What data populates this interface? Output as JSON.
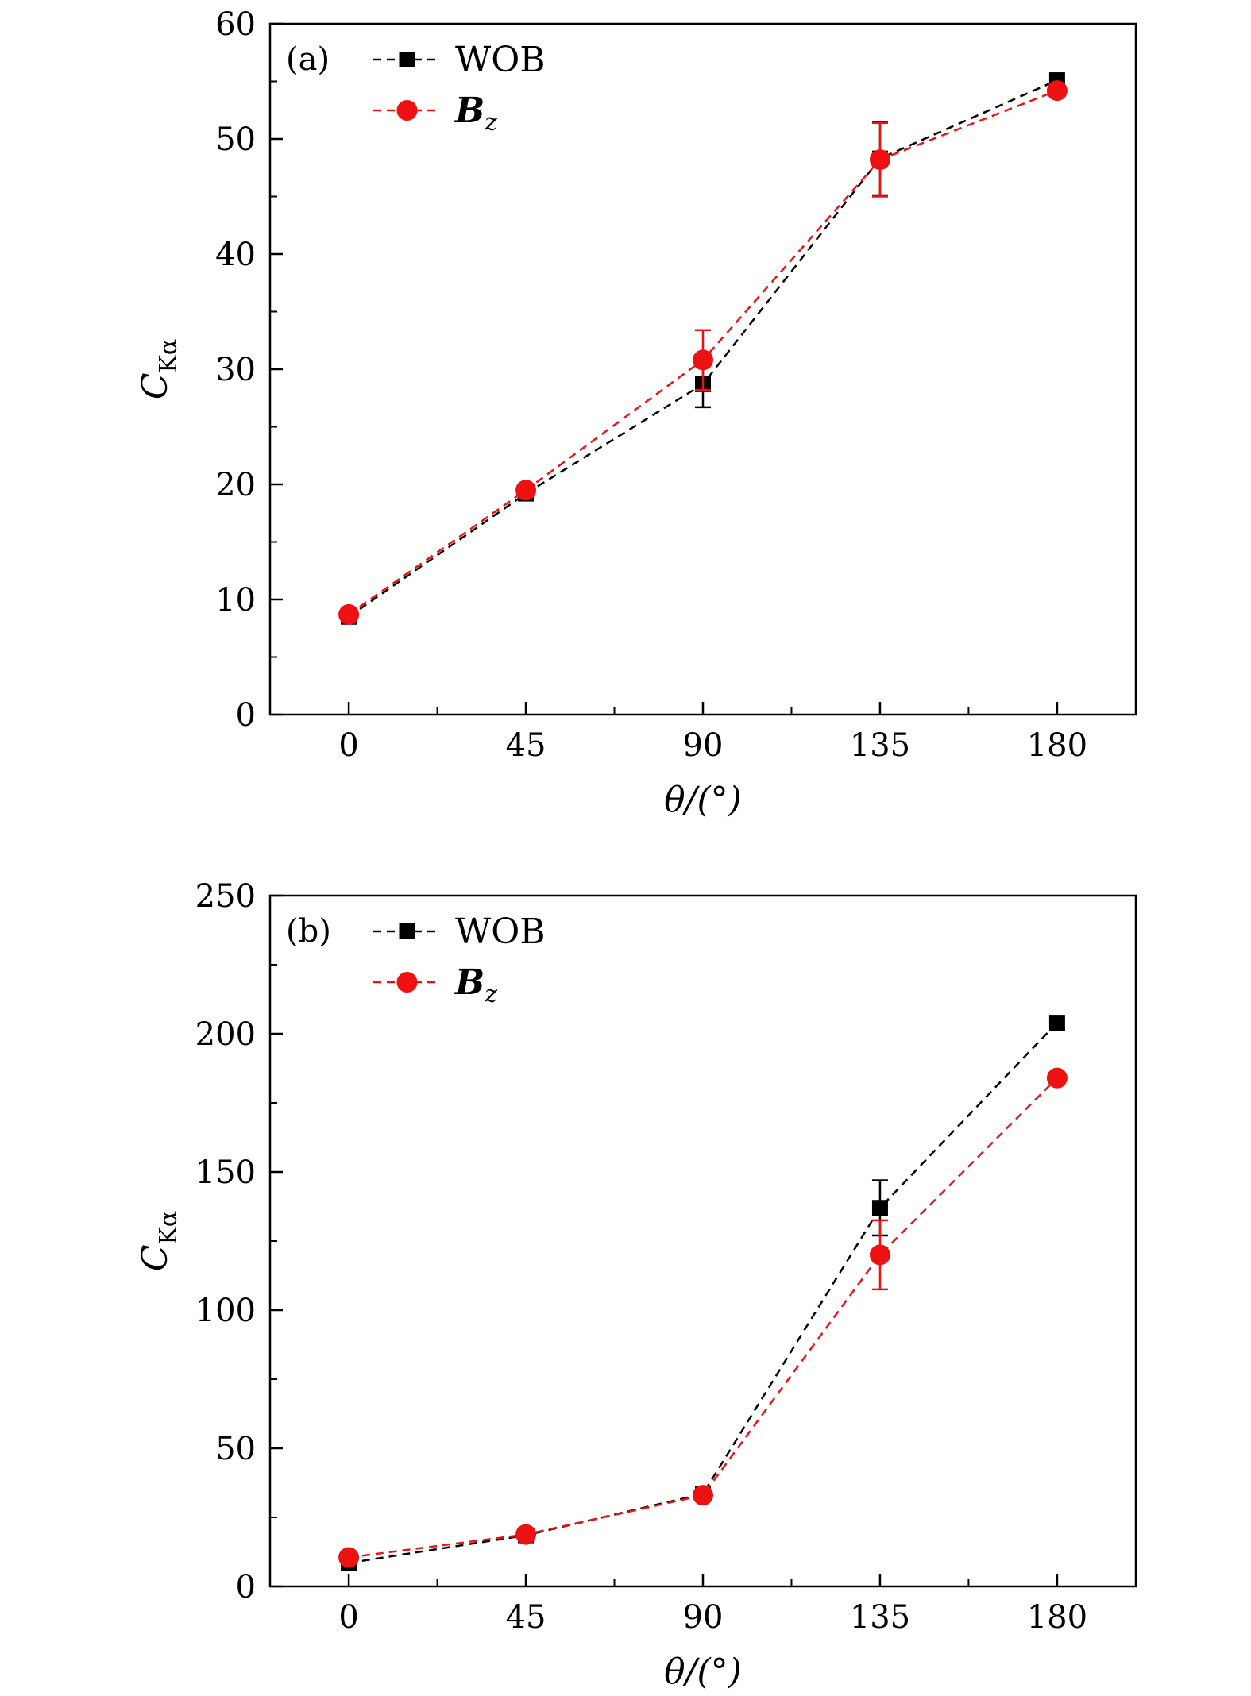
{
  "chart_data": [
    {
      "type": "line",
      "panel_label": "(a)",
      "xlabel": "θ/(°)",
      "ylabel": "C",
      "ylabel_subscript": "Kα",
      "x": [
        0,
        45,
        90,
        135,
        180
      ],
      "xlim": [
        -20,
        200
      ],
      "ylim": [
        0,
        60
      ],
      "x_ticks": [
        0,
        45,
        90,
        135,
        180
      ],
      "y_ticks": [
        0,
        10,
        20,
        30,
        40,
        50,
        60
      ],
      "legend_position": "top-left",
      "series": [
        {
          "name": "WOB",
          "marker": "square",
          "color": "#000000",
          "values": [
            8.5,
            19.2,
            28.7,
            48.3,
            55.1
          ],
          "errors": [
            0,
            0,
            2.0,
            3.2,
            0
          ]
        },
        {
          "name": "B",
          "name_subscript": "z",
          "marker": "circle",
          "color": "#ee1111",
          "values": [
            8.7,
            19.5,
            30.8,
            48.2,
            54.2
          ],
          "errors": [
            0,
            0,
            2.6,
            3.2,
            0
          ]
        }
      ]
    },
    {
      "type": "line",
      "panel_label": "(b)",
      "xlabel": "θ/(°)",
      "ylabel": "C",
      "ylabel_subscript": "Kα",
      "x": [
        0,
        45,
        90,
        135,
        180
      ],
      "xlim": [
        -20,
        200
      ],
      "ylim": [
        0,
        250
      ],
      "x_ticks": [
        0,
        45,
        90,
        135,
        180
      ],
      "y_ticks": [
        0,
        50,
        100,
        150,
        200,
        250
      ],
      "legend_position": "top-left",
      "series": [
        {
          "name": "WOB",
          "marker": "square",
          "color": "#000000",
          "values": [
            8.5,
            18.5,
            33.5,
            137.0,
            204.0
          ],
          "errors": [
            0,
            0,
            2.5,
            10.0,
            0
          ]
        },
        {
          "name": "B",
          "name_subscript": "z",
          "marker": "circle",
          "color": "#ee1111",
          "values": [
            10.5,
            18.8,
            33.0,
            120.0,
            184.0
          ],
          "errors": [
            0,
            0,
            1.5,
            12.5,
            0
          ]
        }
      ]
    }
  ]
}
